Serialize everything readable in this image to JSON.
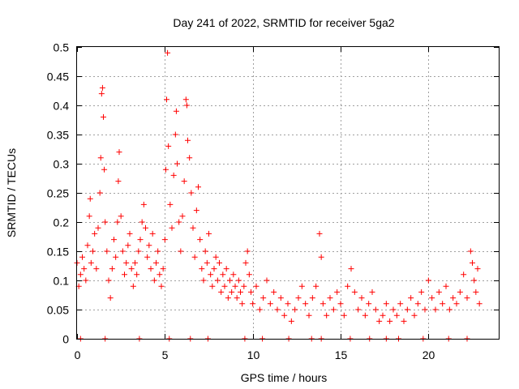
{
  "chart_data": {
    "type": "scatter",
    "title": "Day 241 of 2022, SRMTID for receiver 5ga2",
    "xlabel": "GPS time / hours",
    "ylabel": "SRMTID / TECUs",
    "xlim": [
      0,
      24
    ],
    "ylim": [
      0,
      0.5
    ],
    "x_ticks": [
      0,
      5,
      10,
      15,
      20
    ],
    "y_ticks": [
      0,
      0.05,
      0.1,
      0.15,
      0.2,
      0.25,
      0.3,
      0.35,
      0.4,
      0.45,
      0.5
    ],
    "x_tick_labels": [
      "0",
      "5",
      "10",
      "15",
      "20"
    ],
    "y_tick_labels": [
      "0",
      "0.05",
      "0.1",
      "0.15",
      "0.2",
      "0.25",
      "0.3",
      "0.35",
      "0.4",
      "0.45",
      "0.5"
    ],
    "grid": true,
    "marker": "+",
    "marker_color": "#ff0000",
    "series": [
      {
        "name": "SRMTID",
        "points": [
          [
            0.0,
            0.13
          ],
          [
            0.1,
            0.09
          ],
          [
            0.2,
            0.11
          ],
          [
            0.3,
            0.14
          ],
          [
            0.4,
            0.12
          ],
          [
            0.5,
            0.1
          ],
          [
            0.6,
            0.16
          ],
          [
            0.7,
            0.21
          ],
          [
            0.75,
            0.24
          ],
          [
            0.8,
            0.13
          ],
          [
            0.9,
            0.15
          ],
          [
            1.0,
            0.18
          ],
          [
            1.1,
            0.12
          ],
          [
            1.2,
            0.19
          ],
          [
            1.3,
            0.25
          ],
          [
            1.35,
            0.31
          ],
          [
            1.4,
            0.42
          ],
          [
            1.45,
            0.43
          ],
          [
            1.5,
            0.38
          ],
          [
            1.55,
            0.29
          ],
          [
            1.6,
            0.2
          ],
          [
            1.7,
            0.15
          ],
          [
            1.8,
            0.1
          ],
          [
            1.9,
            0.07
          ],
          [
            2.0,
            0.12
          ],
          [
            2.1,
            0.17
          ],
          [
            2.2,
            0.14
          ],
          [
            2.3,
            0.2
          ],
          [
            2.35,
            0.27
          ],
          [
            2.4,
            0.32
          ],
          [
            2.5,
            0.21
          ],
          [
            2.6,
            0.15
          ],
          [
            2.7,
            0.11
          ],
          [
            2.8,
            0.13
          ],
          [
            2.9,
            0.16
          ],
          [
            3.0,
            0.18
          ],
          [
            3.1,
            0.12
          ],
          [
            3.2,
            0.09
          ],
          [
            3.3,
            0.13
          ],
          [
            3.4,
            0.11
          ],
          [
            3.5,
            0.15
          ],
          [
            3.6,
            0.17
          ],
          [
            3.7,
            0.2
          ],
          [
            3.8,
            0.23
          ],
          [
            3.9,
            0.19
          ],
          [
            4.0,
            0.14
          ],
          [
            4.1,
            0.16
          ],
          [
            4.2,
            0.12
          ],
          [
            4.3,
            0.18
          ],
          [
            4.4,
            0.1
          ],
          [
            4.5,
            0.13
          ],
          [
            4.6,
            0.15
          ],
          [
            4.7,
            0.11
          ],
          [
            4.8,
            0.09
          ],
          [
            4.9,
            0.12
          ],
          [
            5.0,
            0.17
          ],
          [
            5.05,
            0.29
          ],
          [
            5.1,
            0.41
          ],
          [
            5.15,
            0.49
          ],
          [
            5.2,
            0.33
          ],
          [
            5.3,
            0.23
          ],
          [
            5.4,
            0.19
          ],
          [
            5.5,
            0.28
          ],
          [
            5.6,
            0.35
          ],
          [
            5.65,
            0.39
          ],
          [
            5.7,
            0.3
          ],
          [
            5.8,
            0.2
          ],
          [
            5.9,
            0.15
          ],
          [
            6.0,
            0.21
          ],
          [
            6.1,
            0.27
          ],
          [
            6.2,
            0.41
          ],
          [
            6.25,
            0.4
          ],
          [
            6.3,
            0.34
          ],
          [
            6.4,
            0.31
          ],
          [
            6.5,
            0.25
          ],
          [
            6.6,
            0.19
          ],
          [
            6.7,
            0.14
          ],
          [
            6.8,
            0.22
          ],
          [
            6.9,
            0.26
          ],
          [
            7.0,
            0.17
          ],
          [
            7.1,
            0.12
          ],
          [
            7.2,
            0.1
          ],
          [
            7.3,
            0.15
          ],
          [
            7.4,
            0.13
          ],
          [
            7.5,
            0.18
          ],
          [
            7.6,
            0.11
          ],
          [
            7.7,
            0.09
          ],
          [
            7.8,
            0.12
          ],
          [
            7.9,
            0.14
          ],
          [
            8.0,
            0.1
          ],
          [
            8.1,
            0.13
          ],
          [
            8.2,
            0.08
          ],
          [
            8.3,
            0.11
          ],
          [
            8.4,
            0.09
          ],
          [
            8.5,
            0.12
          ],
          [
            8.6,
            0.07
          ],
          [
            8.7,
            0.1
          ],
          [
            8.8,
            0.08
          ],
          [
            8.9,
            0.11
          ],
          [
            9.0,
            0.09
          ],
          [
            9.1,
            0.07
          ],
          [
            9.2,
            0.1
          ],
          [
            9.3,
            0.08
          ],
          [
            9.4,
            0.06
          ],
          [
            9.5,
            0.09
          ],
          [
            9.6,
            0.13
          ],
          [
            9.7,
            0.15
          ],
          [
            9.8,
            0.11
          ],
          [
            9.9,
            0.08
          ],
          [
            10.0,
            0.06
          ],
          [
            10.2,
            0.09
          ],
          [
            10.4,
            0.05
          ],
          [
            10.6,
            0.07
          ],
          [
            10.8,
            0.1
          ],
          [
            11.0,
            0.06
          ],
          [
            11.2,
            0.08
          ],
          [
            11.4,
            0.05
          ],
          [
            11.6,
            0.07
          ],
          [
            11.8,
            0.04
          ],
          [
            12.0,
            0.06
          ],
          [
            12.2,
            0.03
          ],
          [
            12.4,
            0.05
          ],
          [
            12.6,
            0.07
          ],
          [
            12.8,
            0.09
          ],
          [
            13.0,
            0.06
          ],
          [
            13.2,
            0.04
          ],
          [
            13.4,
            0.07
          ],
          [
            13.6,
            0.09
          ],
          [
            13.8,
            0.18
          ],
          [
            13.9,
            0.14
          ],
          [
            14.0,
            0.06
          ],
          [
            14.2,
            0.04
          ],
          [
            14.4,
            0.07
          ],
          [
            14.6,
            0.05
          ],
          [
            14.8,
            0.08
          ],
          [
            15.0,
            0.06
          ],
          [
            15.2,
            0.04
          ],
          [
            15.4,
            0.09
          ],
          [
            15.6,
            0.12
          ],
          [
            15.8,
            0.08
          ],
          [
            16.0,
            0.05
          ],
          [
            16.2,
            0.07
          ],
          [
            16.4,
            0.04
          ],
          [
            16.6,
            0.06
          ],
          [
            16.8,
            0.08
          ],
          [
            17.0,
            0.05
          ],
          [
            17.2,
            0.03
          ],
          [
            17.4,
            0.04
          ],
          [
            17.6,
            0.06
          ],
          [
            17.8,
            0.03
          ],
          [
            18.0,
            0.05
          ],
          [
            18.2,
            0.04
          ],
          [
            18.4,
            0.06
          ],
          [
            18.6,
            0.03
          ],
          [
            18.8,
            0.05
          ],
          [
            19.0,
            0.07
          ],
          [
            19.2,
            0.04
          ],
          [
            19.4,
            0.06
          ],
          [
            19.6,
            0.08
          ],
          [
            19.8,
            0.05
          ],
          [
            20.0,
            0.1
          ],
          [
            20.2,
            0.07
          ],
          [
            20.4,
            0.05
          ],
          [
            20.6,
            0.08
          ],
          [
            20.8,
            0.06
          ],
          [
            21.0,
            0.09
          ],
          [
            21.2,
            0.05
          ],
          [
            21.4,
            0.07
          ],
          [
            21.6,
            0.06
          ],
          [
            21.8,
            0.08
          ],
          [
            22.0,
            0.11
          ],
          [
            22.2,
            0.07
          ],
          [
            22.4,
            0.15
          ],
          [
            22.5,
            0.13
          ],
          [
            22.6,
            0.1
          ],
          [
            22.7,
            0.08
          ],
          [
            22.8,
            0.12
          ],
          [
            22.9,
            0.06
          ]
        ],
        "zero_points": [
          0.2,
          1.6,
          3.55,
          5.25,
          6.45,
          7.45,
          9.55,
          10.55,
          12.05,
          13.35,
          13.9,
          15.55,
          16.65,
          17.6,
          18.3,
          19.7,
          21.15,
          22.2
        ]
      }
    ]
  }
}
